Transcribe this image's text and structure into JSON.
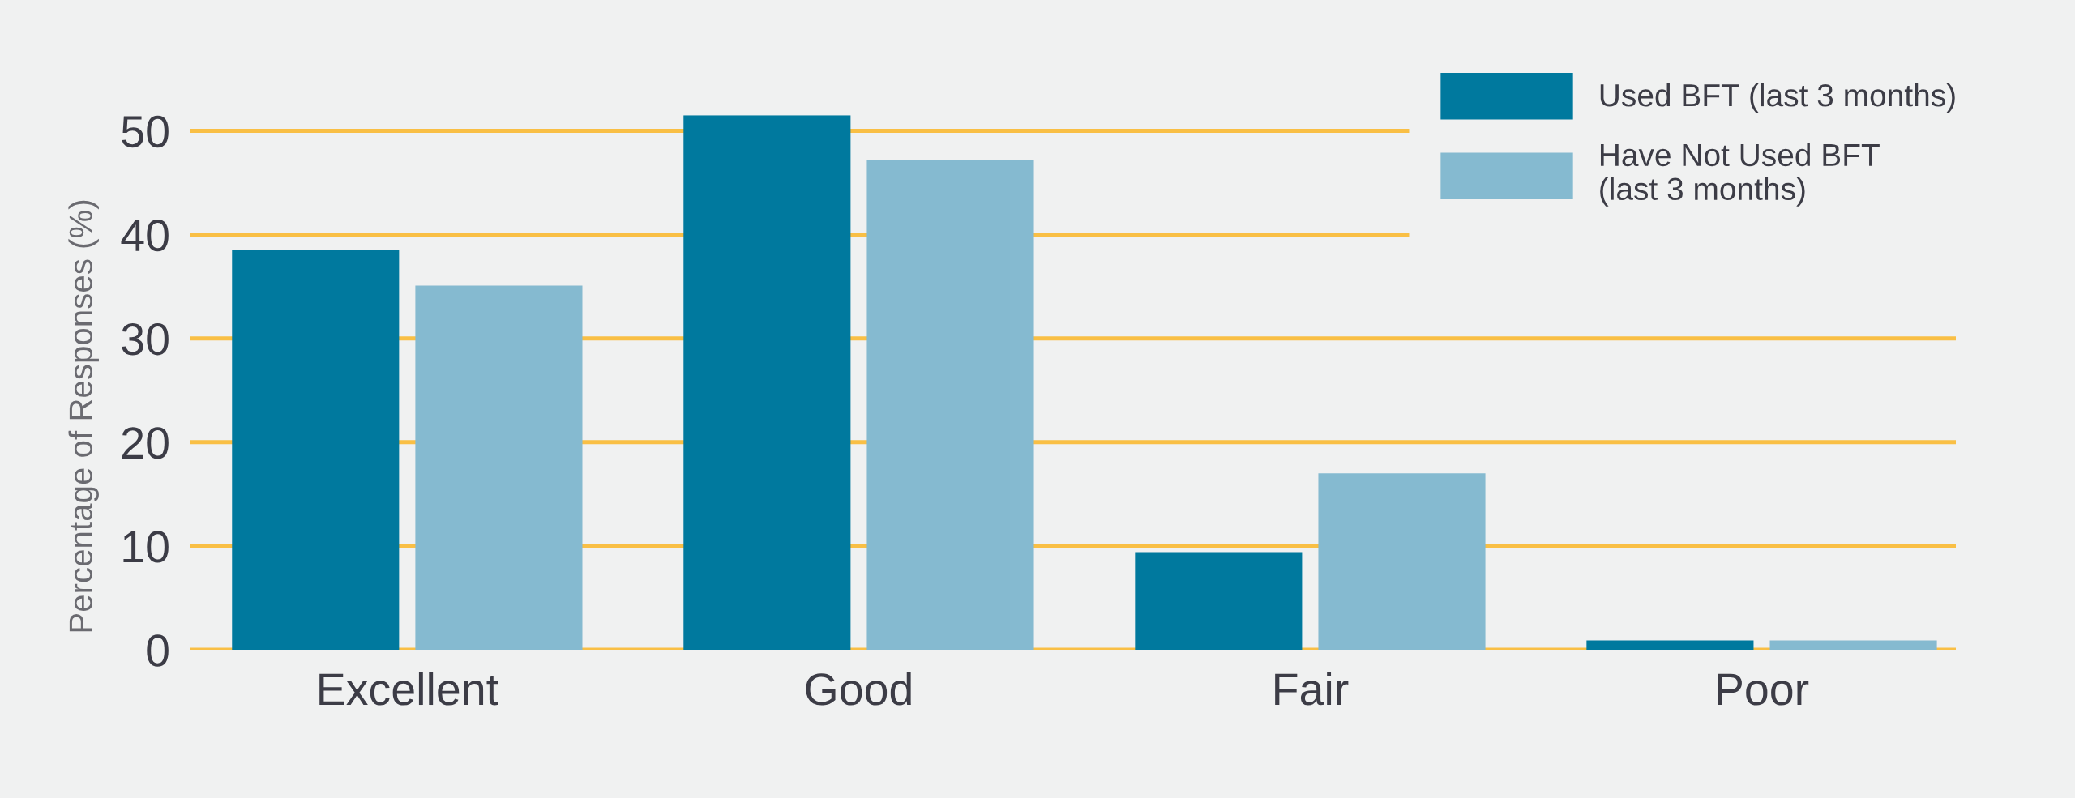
{
  "chart_data": {
    "type": "bar",
    "ylabel": "Percentage of Responses (%)",
    "categories": [
      "Excellent",
      "Good",
      "Fair",
      "Poor"
    ],
    "series": [
      {
        "name": "Used BFT (last 3 months)",
        "color": "#00799e",
        "values": [
          38.5,
          51.5,
          9.4,
          0.9
        ]
      },
      {
        "name": "Have Not Used BFT\n(last 3 months)",
        "color": "#85bad0",
        "values": [
          35.1,
          47.2,
          17.0,
          0.9
        ]
      }
    ],
    "ylim": [
      0,
      51.5
    ],
    "yticks": [
      0,
      10,
      20,
      30,
      40,
      50
    ],
    "grid": "y",
    "legend": "top right"
  }
}
